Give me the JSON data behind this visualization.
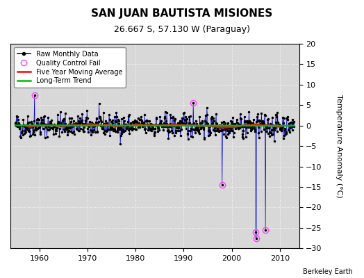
{
  "title": "SAN JUAN BAUTISTA MISIONES",
  "subtitle": "26.667 S, 57.130 W (Paraguay)",
  "ylabel": "Temperature Anomaly (°C)",
  "credit": "Berkeley Earth",
  "xlim": [
    1954,
    2014
  ],
  "ylim": [
    -30,
    20
  ],
  "yticks": [
    -30,
    -25,
    -20,
    -15,
    -10,
    -5,
    0,
    5,
    10,
    15,
    20
  ],
  "xticks": [
    1960,
    1970,
    1980,
    1990,
    2000,
    2010
  ],
  "bg_color": "#d8d8d8",
  "line_color": "#0000cc",
  "ma_color": "#ff0000",
  "trend_color": "#00bb00",
  "qc_color": "#ff44ff",
  "dot_color": "#000000",
  "seed": 42,
  "start_year": 1955.0,
  "n_months": 696
}
